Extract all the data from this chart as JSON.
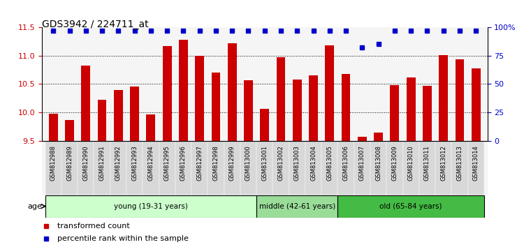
{
  "title": "GDS3942 / 224711_at",
  "samples": [
    "GSM812988",
    "GSM812989",
    "GSM812990",
    "GSM812991",
    "GSM812992",
    "GSM812993",
    "GSM812994",
    "GSM812995",
    "GSM812996",
    "GSM812997",
    "GSM812998",
    "GSM812999",
    "GSM813000",
    "GSM813001",
    "GSM813002",
    "GSM813003",
    "GSM813004",
    "GSM813005",
    "GSM813006",
    "GSM813007",
    "GSM813008",
    "GSM813009",
    "GSM813010",
    "GSM813011",
    "GSM813012",
    "GSM813013",
    "GSM813014"
  ],
  "bar_values": [
    9.98,
    9.87,
    10.82,
    10.22,
    10.39,
    10.46,
    9.97,
    11.17,
    11.28,
    11.0,
    10.7,
    11.22,
    10.56,
    10.06,
    10.97,
    10.58,
    10.65,
    11.18,
    10.68,
    9.57,
    9.65,
    10.48,
    10.62,
    10.47,
    11.01,
    10.93,
    10.77
  ],
  "percentile_values": [
    97,
    97,
    97,
    97,
    97,
    97,
    97,
    97,
    97,
    97,
    97,
    97,
    97,
    97,
    97,
    97,
    97,
    97,
    97,
    82,
    85,
    97,
    97,
    97,
    97,
    97,
    97
  ],
  "bar_color": "#cc0000",
  "percentile_color": "#0000cc",
  "ylim_left": [
    9.5,
    11.5
  ],
  "ylim_right": [
    0,
    100
  ],
  "yticks_left": [
    9.5,
    10.0,
    10.5,
    11.0,
    11.5
  ],
  "yticks_right": [
    0,
    25,
    50,
    75,
    100
  ],
  "ytick_labels_right": [
    "0",
    "25",
    "50",
    "75",
    "100%"
  ],
  "groups": [
    {
      "label": "young (19-31 years)",
      "start": 0,
      "end": 13,
      "color": "#ccffcc"
    },
    {
      "label": "middle (42-61 years)",
      "start": 13,
      "end": 18,
      "color": "#99dd99"
    },
    {
      "label": "old (65-84 years)",
      "start": 18,
      "end": 27,
      "color": "#44bb44"
    }
  ],
  "legend_items": [
    {
      "label": "transformed count",
      "color": "#cc0000"
    },
    {
      "label": "percentile rank within the sample",
      "color": "#0000cc"
    }
  ],
  "background_color": "#ffffff",
  "bar_width": 0.55,
  "chart_bg": "#f5f5f5"
}
